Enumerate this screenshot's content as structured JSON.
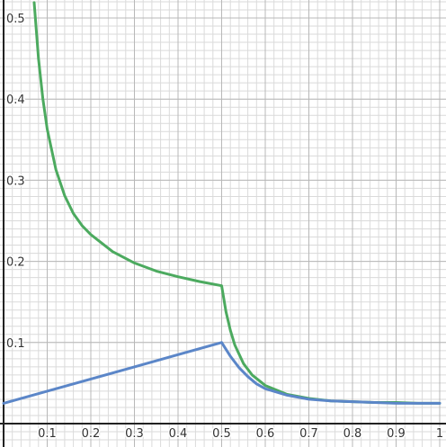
{
  "chart_data": {
    "type": "line",
    "xlim": [
      0,
      1
    ],
    "ylim": [
      0,
      0.5
    ],
    "grid": true,
    "x_ticks": [
      {
        "value": 0.1,
        "label": "0.1"
      },
      {
        "value": 0.2,
        "label": "0.2"
      },
      {
        "value": 0.3,
        "label": "0.3"
      },
      {
        "value": 0.4,
        "label": "0.4"
      },
      {
        "value": 0.5,
        "label": "0.5"
      },
      {
        "value": 0.6,
        "label": "0.6"
      },
      {
        "value": 0.7,
        "label": "0.7"
      },
      {
        "value": 0.8,
        "label": "0.8"
      },
      {
        "value": 0.9,
        "label": "0.9"
      },
      {
        "value": 1.0,
        "label": "1"
      }
    ],
    "y_ticks": [
      {
        "value": 0.1,
        "label": "0.1"
      },
      {
        "value": 0.2,
        "label": "0.2"
      },
      {
        "value": 0.3,
        "label": "0.3"
      },
      {
        "value": 0.4,
        "label": "0.4"
      },
      {
        "value": 0.5,
        "label": "0.5"
      }
    ],
    "series": [
      {
        "color": "#4caa5f",
        "x": [
          0.07,
          0.08,
          0.09,
          0.1,
          0.12,
          0.14,
          0.16,
          0.18,
          0.2,
          0.25,
          0.3,
          0.35,
          0.4,
          0.45,
          0.5,
          0.51,
          0.52,
          0.53,
          0.55,
          0.57,
          0.6,
          0.65,
          0.7,
          0.75,
          0.8,
          0.85,
          0.9,
          0.95,
          1.0
        ],
        "y": [
          0.519,
          0.45,
          0.401,
          0.363,
          0.313,
          0.281,
          0.259,
          0.244,
          0.233,
          0.212,
          0.198,
          0.188,
          0.181,
          0.175,
          0.17,
          0.138,
          0.115,
          0.097,
          0.074,
          0.06,
          0.047,
          0.036,
          0.031,
          0.028,
          0.027,
          0.026,
          0.026,
          0.025,
          0.025
        ]
      },
      {
        "color": "#5b86c8",
        "x": [
          0,
          0.1,
          0.2,
          0.3,
          0.4,
          0.5,
          0.52,
          0.54,
          0.56,
          0.58,
          0.6,
          0.65,
          0.7,
          0.75,
          0.8,
          0.9,
          1.0
        ],
        "y": [
          0.025,
          0.04,
          0.055,
          0.07,
          0.085,
          0.1,
          0.083,
          0.069,
          0.058,
          0.049,
          0.043,
          0.035,
          0.03,
          0.028,
          0.027,
          0.025,
          0.025
        ]
      }
    ]
  }
}
